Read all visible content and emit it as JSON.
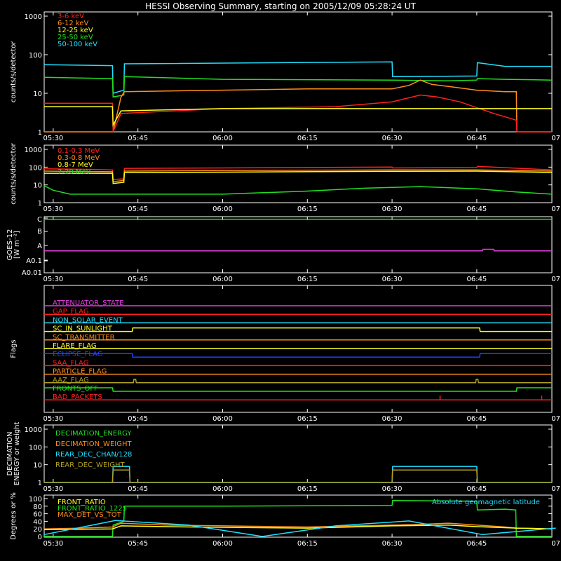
{
  "title": "HESSI Observing Summary, starting on 2005/12/09 05:28:24 UT",
  "time_axis": {
    "start_minutes": 28.4,
    "end_minutes": 118.3,
    "ticks": [
      "05:30",
      "05:45",
      "06:00",
      "06:15",
      "06:30",
      "06:45",
      "07:00"
    ],
    "tick_minutes": [
      30,
      45,
      60,
      75,
      90,
      105,
      120
    ]
  },
  "chart_data": [
    {
      "type": "line",
      "id": "panel1",
      "ylabel": "counts/s/detector",
      "yscale": "log",
      "ylim": [
        1,
        1000
      ],
      "ytick_labels": [
        "1",
        "10",
        "100",
        "1000"
      ],
      "ytick_values": [
        1,
        10,
        100,
        1000
      ],
      "legend": [
        {
          "label": "3-6 keV",
          "color": "#ff2020"
        },
        {
          "label": "6-12 keV",
          "color": "#ff8c1a"
        },
        {
          "label": "12-25 keV",
          "color": "#ffff20"
        },
        {
          "label": "25-50 keV",
          "color": "#20e020"
        },
        {
          "label": "50-100 keV",
          "color": "#20e0ff"
        }
      ],
      "series": [
        {
          "name": "50-100 keV",
          "color": "#20e0ff",
          "x": [
            28.4,
            40.5,
            40.6,
            42.5,
            42.6,
            90,
            90.1,
            105,
            105.1,
            110,
            118.3
          ],
          "y": [
            55,
            52,
            10,
            12,
            58,
            65,
            27,
            28,
            62,
            50,
            50
          ]
        },
        {
          "name": "25-50 keV",
          "color": "#20e020",
          "x": [
            28.4,
            40.5,
            40.6,
            42.5,
            42.6,
            60,
            90,
            100,
            105,
            105.1,
            110,
            118.3
          ],
          "y": [
            26,
            24,
            8,
            9,
            27,
            23,
            22,
            21,
            22,
            24,
            23,
            22
          ]
        },
        {
          "name": "6-12 keV",
          "color": "#ff8c1a",
          "x": [
            28.4,
            40.5,
            40.6,
            42.0,
            42.6,
            60,
            75,
            90,
            93,
            95,
            97,
            100,
            105,
            110,
            112,
            112.1,
            118.3
          ],
          "y": [
            1,
            1,
            1,
            8,
            11,
            12,
            13,
            13,
            16,
            22,
            17,
            15,
            12,
            11,
            11,
            1,
            1
          ]
        },
        {
          "name": "3-6 keV",
          "color": "#ff2020",
          "x": [
            28.4,
            40.5,
            40.6,
            42.0,
            60,
            80,
            90,
            95,
            98,
            102,
            108,
            112,
            112.1,
            118.3
          ],
          "y": [
            5.5,
            5.5,
            1,
            3,
            4,
            4.5,
            6,
            9,
            8,
            6,
            3,
            2,
            1,
            1
          ]
        },
        {
          "name": "12-25 keV",
          "color": "#ffff20",
          "x": [
            28.4,
            40.5,
            40.6,
            42.0,
            60,
            90,
            105,
            118.3
          ],
          "y": [
            4.5,
            4.5,
            1.5,
            3.5,
            4,
            4,
            4,
            4
          ]
        }
      ]
    },
    {
      "type": "line",
      "id": "panel2",
      "ylabel": "counts/s/detector",
      "yscale": "log",
      "ylim": [
        1,
        1000
      ],
      "ytick_labels": [
        "1",
        "10",
        "100",
        "1000"
      ],
      "ytick_values": [
        1,
        10,
        100,
        1000
      ],
      "legend": [
        {
          "label": "0.1-0.3 MeV",
          "color": "#ff2020"
        },
        {
          "label": "0.3-0.8 MeV",
          "color": "#ff8c1a"
        },
        {
          "label": "0.8-7 MeV",
          "color": "#ffff20"
        },
        {
          "label": "7-20 MeV",
          "color": "#20e020"
        }
      ],
      "series": [
        {
          "name": "0.1-0.3 MeV",
          "color": "#ff2020",
          "x": [
            28.4,
            36,
            40.5,
            40.6,
            42.5,
            42.6,
            60,
            75,
            90,
            90.1,
            105,
            105.1,
            118.3
          ],
          "y": [
            80,
            75,
            70,
            20,
            22,
            85,
            90,
            95,
            100,
            90,
            95,
            110,
            70
          ]
        },
        {
          "name": "0.3-0.8 MeV",
          "color": "#ff8c1a",
          "x": [
            28.4,
            40.5,
            40.6,
            42.5,
            42.6,
            60,
            90,
            105,
            118.3
          ],
          "y": [
            60,
            55,
            15,
            18,
            60,
            65,
            70,
            70,
            60
          ]
        },
        {
          "name": "0.8-7 MeV",
          "color": "#ffff20",
          "x": [
            28.4,
            40.5,
            40.6,
            42.5,
            42.6,
            60,
            90,
            105,
            118.3
          ],
          "y": [
            45,
            45,
            12,
            14,
            50,
            52,
            58,
            60,
            50
          ]
        },
        {
          "name": "7-20 MeV",
          "color": "#20e020",
          "x": [
            28.4,
            30,
            33,
            40,
            45,
            60,
            75,
            85,
            95,
            105,
            112,
            118.3
          ],
          "y": [
            9,
            5,
            3,
            3,
            3,
            3,
            4.5,
            6.5,
            8,
            6,
            4,
            3
          ]
        }
      ]
    },
    {
      "type": "line",
      "id": "panel3",
      "ylabel": "GOES-12 [W m⁻²]",
      "ytick_labels": [
        "A0.01",
        "A0.1",
        "A",
        "B",
        "C"
      ],
      "series": [
        {
          "name": "",
          "color": "#30e030",
          "x": [
            28.4,
            118.3
          ],
          "y": [
            3.9,
            3.9
          ]
        },
        {
          "name": "",
          "color": "#e040e0",
          "x": [
            28.4,
            106,
            106.1,
            108,
            108.1,
            118.3
          ],
          "y": [
            1.0,
            1.0,
            1.15,
            1.15,
            1.0,
            1.0
          ]
        }
      ]
    },
    {
      "type": "line",
      "id": "panel4",
      "ylabel": "Flags",
      "flags": [
        {
          "label": "ATTENUATOR_STATE",
          "color": "#e040e0",
          "x": [
            28.4,
            118.3
          ],
          "y": [
            0,
            0
          ]
        },
        {
          "label": "GAP_FLAG",
          "color": "#ff2020",
          "x": [
            28.4,
            118.3
          ],
          "y": [
            0,
            0
          ]
        },
        {
          "label": "NON_SOLAR_EVENT",
          "color": "#20e0ff",
          "x": [
            28.4,
            118.3
          ],
          "y": [
            0,
            0
          ]
        },
        {
          "label": "SC_IN_SUNLIGHT",
          "color": "#ffff20",
          "x": [
            28.4,
            44,
            44.1,
            105.5,
            105.6,
            118.3
          ],
          "y": [
            0,
            0,
            1,
            1,
            0,
            0
          ]
        },
        {
          "label": "SC_TRANSMITTER",
          "color": "#ff8c1a",
          "x": [
            28.4,
            118.3
          ],
          "y": [
            0,
            0
          ]
        },
        {
          "label": "FLARE_FLAG",
          "color": "#ffff20",
          "x": [
            28.4,
            118.3
          ],
          "y": [
            0,
            0
          ]
        },
        {
          "label": "ECLIPSE_FLAG",
          "color": "#2040ff",
          "x": [
            28.4,
            44,
            44.1,
            105.5,
            105.6,
            118.3
          ],
          "y": [
            1,
            1,
            0,
            0,
            1,
            1
          ]
        },
        {
          "label": "SAA_FLAG",
          "color": "#ff2020",
          "x": [
            28.4,
            118.3
          ],
          "y": [
            0,
            0
          ]
        },
        {
          "label": "PARTICLE_FLAG",
          "color": "#ff8c1a",
          "x": [
            28.4,
            118.3
          ],
          "y": [
            0,
            0
          ]
        },
        {
          "label": "AAZ_FLAG",
          "color": "#b0a020",
          "x": [
            28.4,
            44.2,
            44.3,
            44.6,
            44.7,
            104.8,
            104.9,
            105.2,
            105.3,
            118.3
          ],
          "y": [
            0,
            0,
            1,
            1,
            0,
            0,
            1,
            1,
            0,
            0
          ]
        },
        {
          "label": "FRONTS_OFF",
          "color": "#20e020",
          "x": [
            28.4,
            40.5,
            40.6,
            112,
            112.1,
            118.3
          ],
          "y": [
            1,
            1,
            0,
            0,
            1,
            1
          ]
        },
        {
          "label": "BAD_PACKETS",
          "color": "#ff2020",
          "x": [
            28.4,
            118.3
          ],
          "y": [
            0,
            0
          ]
        }
      ]
    },
    {
      "type": "line",
      "id": "panel5",
      "ylabel": "DECIMATION ENERGY or weight",
      "yscale": "log",
      "ylim": [
        1,
        1000
      ],
      "ytick_labels": [
        "1",
        "10",
        "100",
        "1000"
      ],
      "ytick_values": [
        1,
        10,
        100,
        1000
      ],
      "legend": [
        {
          "label": "DECIMATION_ENERGY",
          "color": "#20e020"
        },
        {
          "label": "DECIMATION_WEIGHT",
          "color": "#ff8c1a"
        },
        {
          "label": "REAR_DEC_CHAN/128",
          "color": "#20e0ff"
        },
        {
          "label": "REAR_DEC_WEIGHT",
          "color": "#b0a020"
        }
      ],
      "series": [
        {
          "name": "REAR_DEC_CHAN/128",
          "color": "#20e0ff",
          "x": [
            28.4,
            40.5,
            40.6,
            43.5,
            43.6,
            90,
            90.1,
            105,
            105.1,
            118.3
          ],
          "y": [
            1,
            1,
            8,
            8,
            1,
            1,
            8,
            8,
            1,
            1
          ]
        },
        {
          "name": "REAR_DEC_WEIGHT",
          "color": "#b0a020",
          "x": [
            28.4,
            40.5,
            40.6,
            43.5,
            43.6,
            90,
            90.1,
            105,
            105.1,
            118.3
          ],
          "y": [
            1,
            1,
            5,
            5,
            1,
            1,
            5,
            5,
            1,
            1
          ]
        }
      ]
    },
    {
      "type": "line",
      "id": "panel6",
      "ylabel": "Degrees or %",
      "ylim": [
        0,
        100
      ],
      "ytick_labels": [
        "0",
        "20",
        "40",
        "60",
        "80",
        "100"
      ],
      "ytick_values": [
        0,
        20,
        40,
        60,
        80,
        100
      ],
      "legend": [
        {
          "label": "FRONT_RATIO",
          "color": "#ffff20"
        },
        {
          "label": "FRONT_RATIO_1225",
          "color": "#20e020"
        },
        {
          "label": "MAX_DET_VS_TOT",
          "color": "#ff8c1a"
        },
        {
          "label": "Absolute geomagnetic latitude",
          "color": "#20e0ff"
        }
      ],
      "series": [
        {
          "name": "FRONT_RATIO_1225",
          "color": "#20e020",
          "x": [
            28.4,
            40.5,
            40.6,
            42.5,
            42.6,
            60,
            90,
            90.1,
            105,
            105.1,
            110,
            111.9,
            112,
            118.3
          ],
          "y": [
            0,
            0,
            30,
            40,
            80,
            80,
            82,
            95,
            93,
            70,
            72,
            70,
            0,
            0
          ]
        },
        {
          "name": "MAX_DET_VS_TOT",
          "color": "#ff8c1a",
          "x": [
            28.4,
            35,
            40.5,
            42,
            50,
            60,
            75,
            90,
            95,
            100,
            105,
            110,
            112,
            118.3
          ],
          "y": [
            20,
            22,
            25,
            35,
            30,
            28,
            25,
            30,
            32,
            35,
            30,
            25,
            22,
            20
          ]
        },
        {
          "name": "FRONT_RATIO",
          "color": "#ffff20",
          "x": [
            28.4,
            40.5,
            42,
            50,
            60,
            75,
            90,
            100,
            105,
            112,
            118.3
          ],
          "y": [
            18,
            20,
            28,
            26,
            24,
            22,
            28,
            30,
            26,
            22,
            20
          ]
        },
        {
          "name": "Absolute geomagnetic latitude",
          "color": "#20e0ff",
          "x": [
            28.4,
            41,
            54,
            67,
            80,
            93,
            106,
            119
          ],
          "y": [
            5,
            42,
            30,
            0,
            28,
            41,
            5,
            22
          ]
        }
      ]
    }
  ]
}
